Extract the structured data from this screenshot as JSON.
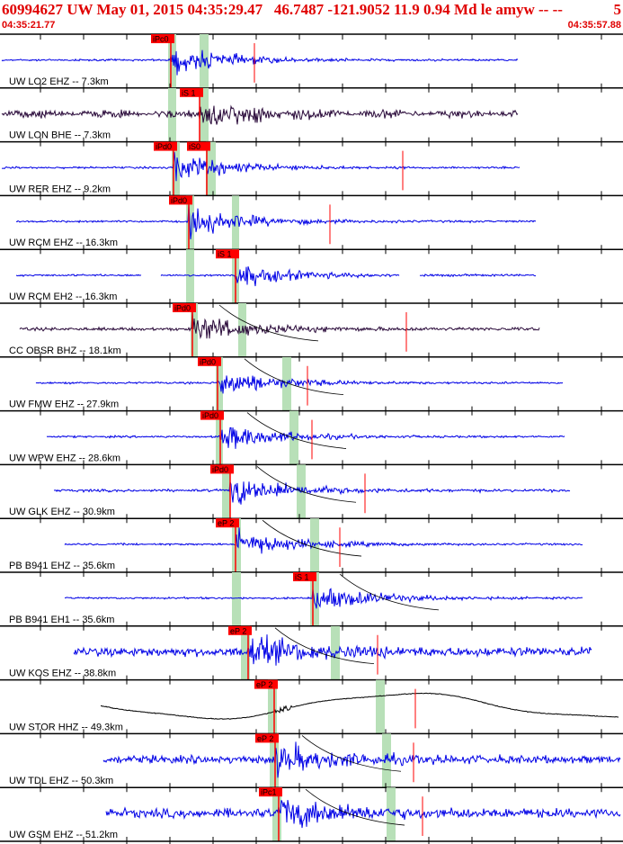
{
  "header": {
    "title": "60994627 UW May 01, 2015 04:35:29.47   46.7487 -121.9052 11.9 0.94 Md le amyw -- --",
    "right_num": "5",
    "time_start": "04:35:21.77",
    "time_end": "04:35:57.88"
  },
  "colors": {
    "header_red": "#e00000",
    "trace_blue": "#0000e6",
    "trace_black": "#000000",
    "trace_dark": "#2a0a3a",
    "pick_red": "#ff0000",
    "window_green": "#b8e0b8"
  },
  "traces": [
    {
      "label": "UW LO2 EHZ -- 7.3km",
      "picks": [
        "iPc0"
      ],
      "color": "trace_blue"
    },
    {
      "label": "UW LON BHE -- 7.3km",
      "picks": [
        "iS 1"
      ],
      "color": "trace_dark"
    },
    {
      "label": "UW RER EHZ -- 9.2km",
      "picks": [
        "iPd0",
        "iS0"
      ],
      "color": "trace_blue"
    },
    {
      "label": "UW RCM EHZ -- 16.3km",
      "picks": [
        "iPd0"
      ],
      "color": "trace_blue"
    },
    {
      "label": "UW RCM EH2 -- 16.3km",
      "picks": [
        "iS 1"
      ],
      "color": "trace_blue"
    },
    {
      "label": "CC OBSR BHZ -- 18.1km",
      "picks": [
        "iPd0"
      ],
      "color": "trace_dark"
    },
    {
      "label": "UW FMW EHZ -- 27.9km",
      "picks": [
        "iPd0"
      ],
      "color": "trace_blue"
    },
    {
      "label": "UW WPW EHZ -- 28.6km",
      "picks": [
        "iPd0"
      ],
      "color": "trace_blue"
    },
    {
      "label": "UW GLK EHZ -- 30.9km",
      "picks": [
        "iPd0"
      ],
      "color": "trace_blue"
    },
    {
      "label": "PB B941 EHZ -- 35.6km",
      "picks": [
        "eP 2"
      ],
      "color": "trace_blue"
    },
    {
      "label": "PB B941 EH1 -- 35.6km",
      "picks": [
        "iS 1"
      ],
      "color": "trace_blue"
    },
    {
      "label": "UW KOS EHZ -- 38.8km",
      "picks": [
        "eP 2"
      ],
      "color": "trace_blue"
    },
    {
      "label": "UW STOR HHZ -- 49.3km",
      "picks": [
        "eP 2"
      ],
      "color": "trace_black"
    },
    {
      "label": "UW TDL EHZ -- 50.3km",
      "picks": [
        "eP 2"
      ],
      "color": "trace_blue"
    },
    {
      "label": "UW GSM EHZ -- 51.2km",
      "picks": [
        "iPc1"
      ],
      "color": "trace_blue"
    }
  ]
}
